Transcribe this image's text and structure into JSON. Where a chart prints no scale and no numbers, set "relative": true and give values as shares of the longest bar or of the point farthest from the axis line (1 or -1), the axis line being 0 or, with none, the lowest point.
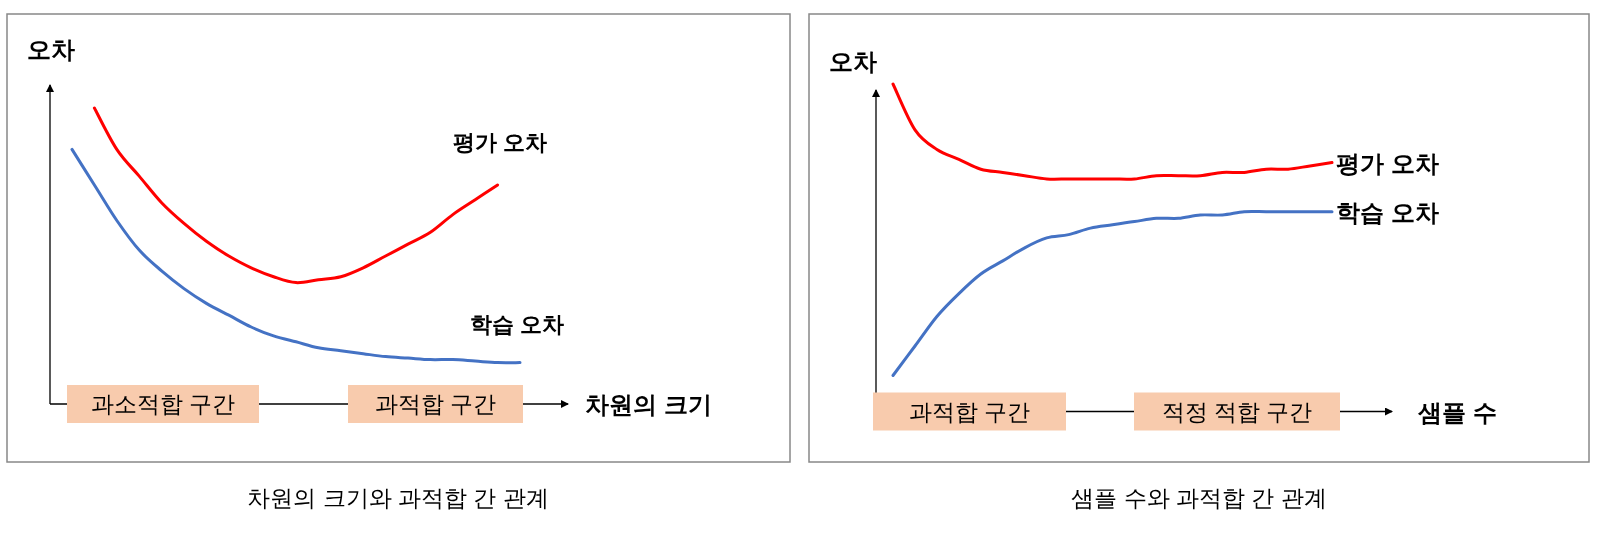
{
  "chart_data": [
    {
      "type": "line",
      "relative": true,
      "title": "차원의 크기와 과적합 간 관계",
      "xlabel": "차원의 크기",
      "ylabel": "오차",
      "categories": [
        null,
        null,
        null,
        null,
        null,
        null,
        null,
        null,
        null,
        null,
        null,
        null,
        null,
        null,
        null,
        null,
        null,
        null,
        null,
        null,
        null
      ],
      "series": [
        {
          "name": "평가 오차",
          "color": "#ff0000",
          "values": [
            null,
            1.0,
            0.86,
            0.77,
            0.68,
            0.61,
            0.55,
            0.5,
            0.46,
            0.43,
            0.41,
            0.42,
            0.43,
            0.46,
            0.5,
            0.54,
            0.58,
            0.64,
            0.69,
            0.74,
            null
          ]
        },
        {
          "name": "학습 오차",
          "color": "#4472c4",
          "values": [
            0.86,
            0.74,
            0.62,
            0.52,
            0.45,
            0.39,
            0.34,
            0.3,
            0.26,
            0.23,
            0.21,
            0.19,
            0.18,
            0.17,
            0.16,
            0.155,
            0.15,
            0.15,
            0.145,
            0.14,
            0.14
          ]
        }
      ],
      "annotations": [
        "과소적합 구간",
        "과적합 구간"
      ],
      "legend": false
    },
    {
      "type": "line",
      "relative": true,
      "title": "샘플 수와 과적합 간 관계",
      "xlabel": "샘플 수",
      "ylabel": "오차",
      "categories": [
        null,
        null,
        null,
        null,
        null,
        null,
        null,
        null,
        null,
        null,
        null,
        null,
        null,
        null,
        null,
        null,
        null,
        null,
        null,
        null,
        null
      ],
      "series": [
        {
          "name": "평가 오차",
          "color": "#ff0000",
          "values": [
            1.0,
            0.86,
            0.8,
            0.77,
            0.74,
            0.73,
            0.72,
            0.71,
            0.71,
            0.71,
            0.71,
            0.71,
            0.72,
            0.72,
            0.72,
            0.73,
            0.73,
            0.74,
            0.74,
            0.75,
            0.76
          ]
        },
        {
          "name": "학습 오차",
          "color": "#4472c4",
          "values": [
            0.11,
            0.2,
            0.29,
            0.36,
            0.42,
            0.46,
            0.5,
            0.53,
            0.54,
            0.56,
            0.57,
            0.58,
            0.59,
            0.59,
            0.6,
            0.6,
            0.61,
            0.61,
            0.61,
            0.61,
            0.61
          ]
        }
      ],
      "annotations": [
        "과적합 구간",
        "적정 적합 구간"
      ],
      "legend": false
    }
  ]
}
